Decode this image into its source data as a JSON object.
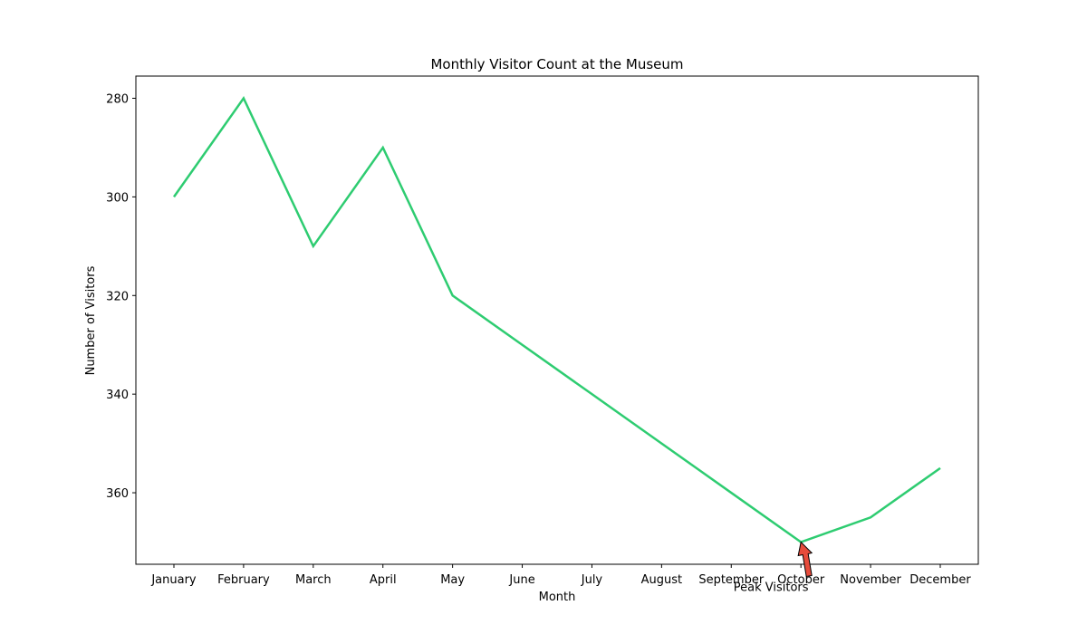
{
  "chart_data": {
    "type": "line",
    "title": "Monthly Visitor Count at the Museum",
    "xlabel": "Month",
    "ylabel": "Number of Visitors",
    "categories": [
      "January",
      "February",
      "March",
      "April",
      "May",
      "June",
      "July",
      "August",
      "September",
      "October",
      "November",
      "December"
    ],
    "series": [
      {
        "values": [
          300,
          280,
          310,
          290,
          320,
          330,
          340,
          350,
          360,
          370,
          365,
          355
        ],
        "color": "#2ecc71"
      }
    ],
    "y_inverted": true,
    "ylim": [
      280,
      370
    ],
    "yticks": [
      280,
      300,
      320,
      340,
      360
    ],
    "grid": false,
    "annotation": {
      "text": "Peak Visitors",
      "target_category": "October",
      "target_value": 370,
      "arrow_color": "#e74c3c"
    }
  }
}
